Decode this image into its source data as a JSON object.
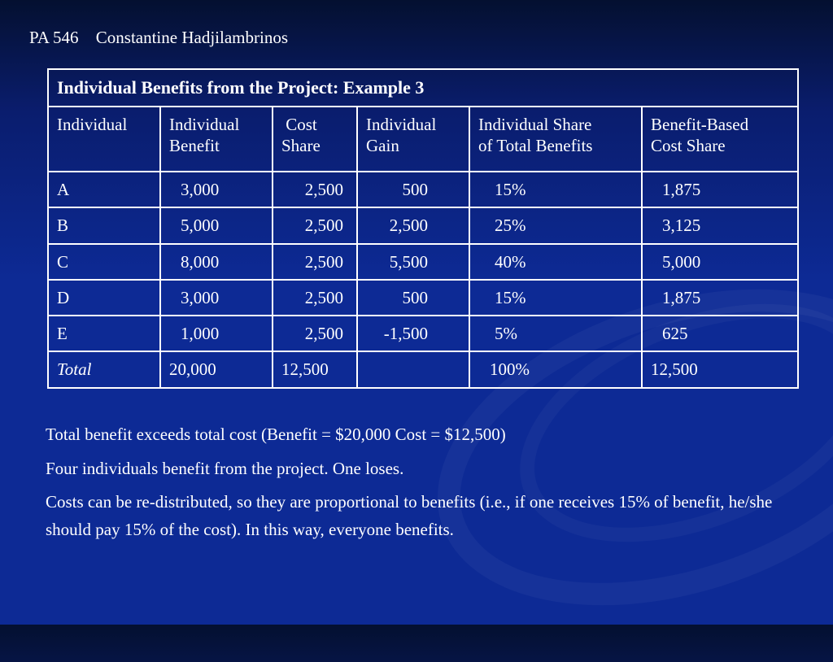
{
  "header": {
    "course": "PA 546",
    "author": "Constantine Hadjilambrinos"
  },
  "table": {
    "caption": "Individual Benefits from the Project: Example 3",
    "headers": [
      [
        "Individual",
        ""
      ],
      [
        "Individual",
        "Benefit"
      ],
      [
        "Cost",
        "Share"
      ],
      [
        "Individual",
        "Gain"
      ],
      [
        "Individual Share",
        "of Total Benefits"
      ],
      [
        "Benefit-Based",
        "Cost Share"
      ]
    ],
    "rows": [
      [
        "A",
        "3,000",
        "2,500",
        "500",
        "15%",
        "1,875"
      ],
      [
        "B",
        "5,000",
        "2,500",
        "2,500",
        "25%",
        "3,125"
      ],
      [
        "C",
        "8,000",
        "2,500",
        "5,500",
        "40%",
        "5,000"
      ],
      [
        "D",
        "3,000",
        "2,500",
        "500",
        "15%",
        "1,875"
      ],
      [
        "E",
        "1,000",
        "2,500",
        "-1,500",
        "5%",
        "625"
      ]
    ],
    "total": [
      "Total",
      "20,000",
      "12,500",
      "",
      "100%",
      "12,500"
    ]
  },
  "notes": [
    "Total benefit exceeds total cost (Benefit = $20,000  Cost = $12,500)",
    "Four individuals benefit from the project.  One loses.",
    "Costs can be re-distributed, so they are proportional to benefits (i.e., if  one receives 15% of  benefit, he/she should pay 15% of  the cost).  In this way, everyone benefits."
  ]
}
